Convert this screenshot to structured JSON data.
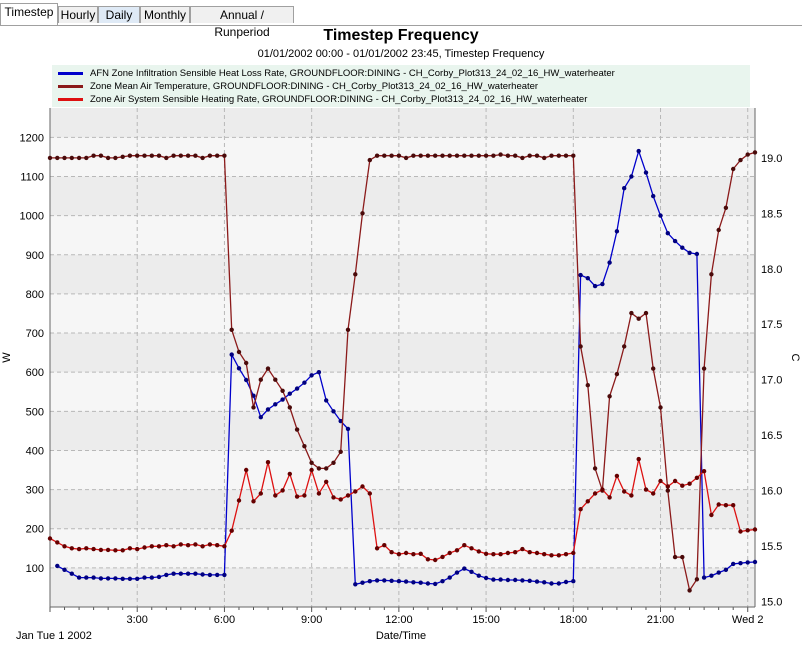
{
  "tabs": [
    {
      "label": "Timestep",
      "active": true
    },
    {
      "label": "Hourly",
      "active": false
    },
    {
      "label": "Daily",
      "active": false
    },
    {
      "label": "Monthly",
      "active": false
    },
    {
      "label": "Annual / Runperiod",
      "active": false
    }
  ],
  "chart_data": {
    "type": "line",
    "title": "Timestep Frequency",
    "subtitle": "01/01/2002 00:00 - 01/01/2002 23:45, Timestep Frequency",
    "xlabel": "Date/Time",
    "ylabel_left": "W",
    "ylabel_right": "C",
    "date_label": "Jan Tue 1 2002",
    "x_tick_labels": [
      "3:00",
      "6:00",
      "9:00",
      "12:00",
      "15:00",
      "18:00",
      "21:00",
      "Wed 2"
    ],
    "x_tick_hours": [
      3,
      6,
      9,
      12,
      15,
      18,
      21,
      24
    ],
    "xlim": [
      0,
      24.25
    ],
    "ylim_left": [
      0,
      1275
    ],
    "yticks_left": [
      100,
      200,
      300,
      400,
      500,
      600,
      700,
      800,
      900,
      1000,
      1100,
      1200
    ],
    "ylim_right": [
      14.95,
      19.45
    ],
    "yticks_right": [
      15.0,
      15.5,
      16.0,
      16.5,
      17.0,
      17.5,
      18.0,
      18.5,
      19.0
    ],
    "grid": true,
    "legend_position": "top",
    "series": [
      {
        "name": "AFN Zone Infiltration Sensible Heat Loss Rate, GROUNDFLOOR:DINING - CH_Corby_Plot313_24_02_16_HW_waterheater",
        "axis": "left",
        "color": "#0000cc",
        "marker_color": "#000080",
        "points": [
          [
            0.25,
            105
          ],
          [
            0.5,
            95
          ],
          [
            0.75,
            85
          ],
          [
            1,
            75
          ],
          [
            1.25,
            75
          ],
          [
            1.5,
            75
          ],
          [
            1.75,
            73
          ],
          [
            2,
            73
          ],
          [
            2.25,
            73
          ],
          [
            2.5,
            72
          ],
          [
            2.75,
            72
          ],
          [
            3,
            72
          ],
          [
            3.25,
            75
          ],
          [
            3.5,
            75
          ],
          [
            3.75,
            77
          ],
          [
            4,
            82
          ],
          [
            4.25,
            85
          ],
          [
            4.5,
            85
          ],
          [
            4.75,
            85
          ],
          [
            5,
            85
          ],
          [
            5.25,
            83
          ],
          [
            5.5,
            82
          ],
          [
            5.75,
            82
          ],
          [
            6,
            82
          ],
          [
            6.25,
            645
          ],
          [
            6.5,
            610
          ],
          [
            6.75,
            580
          ],
          [
            7,
            540
          ],
          [
            7.25,
            485
          ],
          [
            7.5,
            505
          ],
          [
            7.75,
            518
          ],
          [
            8,
            530
          ],
          [
            8.25,
            545
          ],
          [
            8.5,
            558
          ],
          [
            8.75,
            573
          ],
          [
            9,
            592
          ],
          [
            9.25,
            600
          ],
          [
            9.5,
            528
          ],
          [
            9.75,
            500
          ],
          [
            10,
            475
          ],
          [
            10.25,
            455
          ],
          [
            10.5,
            58
          ],
          [
            10.75,
            62
          ],
          [
            11,
            66
          ],
          [
            11.25,
            68
          ],
          [
            11.5,
            68
          ],
          [
            11.75,
            67
          ],
          [
            12,
            66
          ],
          [
            12.25,
            65
          ],
          [
            12.5,
            63
          ],
          [
            12.75,
            62
          ],
          [
            13,
            60
          ],
          [
            13.25,
            59
          ],
          [
            13.5,
            66
          ],
          [
            13.75,
            75
          ],
          [
            14,
            88
          ],
          [
            14.25,
            98
          ],
          [
            14.5,
            90
          ],
          [
            14.75,
            80
          ],
          [
            15,
            74
          ],
          [
            15.25,
            70
          ],
          [
            15.5,
            70
          ],
          [
            15.75,
            69
          ],
          [
            16,
            69
          ],
          [
            16.25,
            68
          ],
          [
            16.5,
            67
          ],
          [
            16.75,
            65
          ],
          [
            17,
            63
          ],
          [
            17.25,
            60
          ],
          [
            17.5,
            60
          ],
          [
            17.75,
            64
          ],
          [
            18,
            66
          ],
          [
            18.25,
            848
          ],
          [
            18.5,
            840
          ],
          [
            18.75,
            820
          ],
          [
            19,
            825
          ],
          [
            19.25,
            880
          ],
          [
            19.5,
            960
          ],
          [
            19.75,
            1070
          ],
          [
            20,
            1100
          ],
          [
            20.25,
            1165
          ],
          [
            20.5,
            1110
          ],
          [
            20.75,
            1050
          ],
          [
            21,
            1000
          ],
          [
            21.25,
            955
          ],
          [
            21.5,
            935
          ],
          [
            21.75,
            918
          ],
          [
            22,
            905
          ],
          [
            22.25,
            902
          ],
          [
            22.5,
            75
          ],
          [
            22.75,
            80
          ],
          [
            23,
            88
          ],
          [
            23.25,
            95
          ],
          [
            23.5,
            110
          ],
          [
            23.75,
            112
          ],
          [
            24,
            114
          ],
          [
            24.25,
            115
          ]
        ]
      },
      {
        "name": "Zone Mean Air Temperature, GROUNDFLOOR:DINING - CH_Corby_Plot313_24_02_16_HW_waterheater",
        "axis": "right",
        "color": "#8b1a1a",
        "marker_color": "#4a0a0a",
        "points": [
          [
            0,
            19.0
          ],
          [
            0.25,
            19.0
          ],
          [
            0.5,
            19.0
          ],
          [
            0.75,
            19.0
          ],
          [
            1,
            19.0
          ],
          [
            1.25,
            19.0
          ],
          [
            1.5,
            19.02
          ],
          [
            1.75,
            19.02
          ],
          [
            2,
            19.0
          ],
          [
            2.25,
            19.0
          ],
          [
            2.5,
            19.01
          ],
          [
            2.75,
            19.02
          ],
          [
            3,
            19.02
          ],
          [
            3.25,
            19.02
          ],
          [
            3.5,
            19.02
          ],
          [
            3.75,
            19.02
          ],
          [
            4,
            19.0
          ],
          [
            4.25,
            19.02
          ],
          [
            4.5,
            19.02
          ],
          [
            4.75,
            19.02
          ],
          [
            5,
            19.02
          ],
          [
            5.25,
            19.0
          ],
          [
            5.5,
            19.02
          ],
          [
            5.75,
            19.02
          ],
          [
            6,
            19.02
          ],
          [
            6.25,
            17.45
          ],
          [
            6.5,
            17.25
          ],
          [
            6.75,
            17.15
          ],
          [
            7,
            16.75
          ],
          [
            7.25,
            17.0
          ],
          [
            7.5,
            17.1
          ],
          [
            7.75,
            17.0
          ],
          [
            8,
            16.9
          ],
          [
            8.25,
            16.75
          ],
          [
            8.5,
            16.55
          ],
          [
            8.75,
            16.4
          ],
          [
            9,
            16.25
          ],
          [
            9.25,
            16.2
          ],
          [
            9.5,
            16.2
          ],
          [
            9.75,
            16.25
          ],
          [
            10,
            16.35
          ],
          [
            10.25,
            17.45
          ],
          [
            10.5,
            17.95
          ],
          [
            10.75,
            18.5
          ],
          [
            11,
            18.98
          ],
          [
            11.25,
            19.02
          ],
          [
            11.5,
            19.02
          ],
          [
            11.75,
            19.02
          ],
          [
            12,
            19.02
          ],
          [
            12.25,
            19.0
          ],
          [
            12.5,
            19.02
          ],
          [
            12.75,
            19.02
          ],
          [
            13,
            19.02
          ],
          [
            13.25,
            19.02
          ],
          [
            13.5,
            19.02
          ],
          [
            13.75,
            19.02
          ],
          [
            14,
            19.02
          ],
          [
            14.25,
            19.02
          ],
          [
            14.5,
            19.02
          ],
          [
            14.75,
            19.02
          ],
          [
            15,
            19.02
          ],
          [
            15.25,
            19.02
          ],
          [
            15.5,
            19.03
          ],
          [
            15.75,
            19.02
          ],
          [
            16,
            19.02
          ],
          [
            16.25,
            19.0
          ],
          [
            16.5,
            19.02
          ],
          [
            16.75,
            19.02
          ],
          [
            17,
            19.0
          ],
          [
            17.25,
            19.02
          ],
          [
            17.5,
            19.02
          ],
          [
            17.75,
            19.02
          ],
          [
            18,
            19.02
          ],
          [
            18.25,
            17.3
          ],
          [
            18.5,
            16.95
          ],
          [
            18.75,
            16.2
          ],
          [
            19,
            16.0
          ],
          [
            19.25,
            16.85
          ],
          [
            19.5,
            17.05
          ],
          [
            19.75,
            17.3
          ],
          [
            20,
            17.6
          ],
          [
            20.25,
            17.55
          ],
          [
            20.5,
            17.6
          ],
          [
            20.75,
            17.1
          ],
          [
            21,
            16.75
          ],
          [
            21.25,
            16.0
          ],
          [
            21.5,
            15.4
          ],
          [
            21.75,
            15.4
          ],
          [
            22,
            15.1
          ],
          [
            22.25,
            15.2
          ],
          [
            22.5,
            17.1
          ],
          [
            22.75,
            17.95
          ],
          [
            23,
            18.35
          ],
          [
            23.25,
            18.55
          ],
          [
            23.5,
            18.9
          ],
          [
            23.75,
            18.98
          ],
          [
            24,
            19.03
          ],
          [
            24.25,
            19.05
          ]
        ]
      },
      {
        "name": "Zone Air System Sensible Heating Rate, GROUNDFLOOR:DINING - CH_Corby_Plot313_24_02_16_HW_waterheater",
        "axis": "left",
        "color": "#dd1111",
        "marker_color": "#660000",
        "points": [
          [
            0,
            175
          ],
          [
            0.25,
            165
          ],
          [
            0.5,
            155
          ],
          [
            0.75,
            150
          ],
          [
            1,
            148
          ],
          [
            1.25,
            150
          ],
          [
            1.5,
            148
          ],
          [
            1.75,
            146
          ],
          [
            2,
            146
          ],
          [
            2.25,
            145
          ],
          [
            2.5,
            145
          ],
          [
            2.75,
            150
          ],
          [
            3,
            148
          ],
          [
            3.25,
            152
          ],
          [
            3.5,
            155
          ],
          [
            3.75,
            155
          ],
          [
            4,
            158
          ],
          [
            4.25,
            155
          ],
          [
            4.5,
            160
          ],
          [
            4.75,
            158
          ],
          [
            5,
            160
          ],
          [
            5.25,
            155
          ],
          [
            5.5,
            160
          ],
          [
            5.75,
            158
          ],
          [
            6,
            155
          ],
          [
            6.25,
            195
          ],
          [
            6.5,
            272
          ],
          [
            6.75,
            350
          ],
          [
            7,
            270
          ],
          [
            7.25,
            290
          ],
          [
            7.5,
            370
          ],
          [
            7.75,
            285
          ],
          [
            8,
            298
          ],
          [
            8.25,
            340
          ],
          [
            8.5,
            282
          ],
          [
            8.75,
            285
          ],
          [
            9,
            350
          ],
          [
            9.25,
            290
          ],
          [
            9.5,
            320
          ],
          [
            9.75,
            280
          ],
          [
            10,
            275
          ],
          [
            10.25,
            285
          ],
          [
            10.5,
            295
          ],
          [
            10.75,
            308
          ],
          [
            11,
            290
          ],
          [
            11.25,
            150
          ],
          [
            11.5,
            158
          ],
          [
            11.75,
            140
          ],
          [
            12,
            135
          ],
          [
            12.25,
            138
          ],
          [
            12.5,
            135
          ],
          [
            12.75,
            136
          ],
          [
            13,
            122
          ],
          [
            13.25,
            120
          ],
          [
            13.5,
            128
          ],
          [
            13.75,
            138
          ],
          [
            14,
            145
          ],
          [
            14.25,
            158
          ],
          [
            14.5,
            150
          ],
          [
            14.75,
            142
          ],
          [
            15,
            136
          ],
          [
            15.25,
            135
          ],
          [
            15.5,
            135
          ],
          [
            15.75,
            138
          ],
          [
            16,
            140
          ],
          [
            16.25,
            148
          ],
          [
            16.5,
            140
          ],
          [
            16.75,
            138
          ],
          [
            17,
            135
          ],
          [
            17.25,
            132
          ],
          [
            17.5,
            132
          ],
          [
            17.75,
            135
          ],
          [
            18,
            138
          ],
          [
            18.25,
            250
          ],
          [
            18.5,
            270
          ],
          [
            18.75,
            290
          ],
          [
            19,
            300
          ],
          [
            19.25,
            280
          ],
          [
            19.5,
            335
          ],
          [
            19.75,
            295
          ],
          [
            20,
            285
          ],
          [
            20.25,
            378
          ],
          [
            20.5,
            300
          ],
          [
            20.75,
            290
          ],
          [
            21,
            322
          ],
          [
            21.25,
            308
          ],
          [
            21.5,
            322
          ],
          [
            21.75,
            310
          ],
          [
            22,
            315
          ],
          [
            22.25,
            330
          ],
          [
            22.5,
            347
          ],
          [
            22.75,
            235
          ],
          [
            23,
            262
          ],
          [
            23.25,
            260
          ],
          [
            23.5,
            260
          ],
          [
            23.75,
            193
          ],
          [
            24,
            196
          ],
          [
            24.25,
            198
          ]
        ]
      }
    ]
  }
}
